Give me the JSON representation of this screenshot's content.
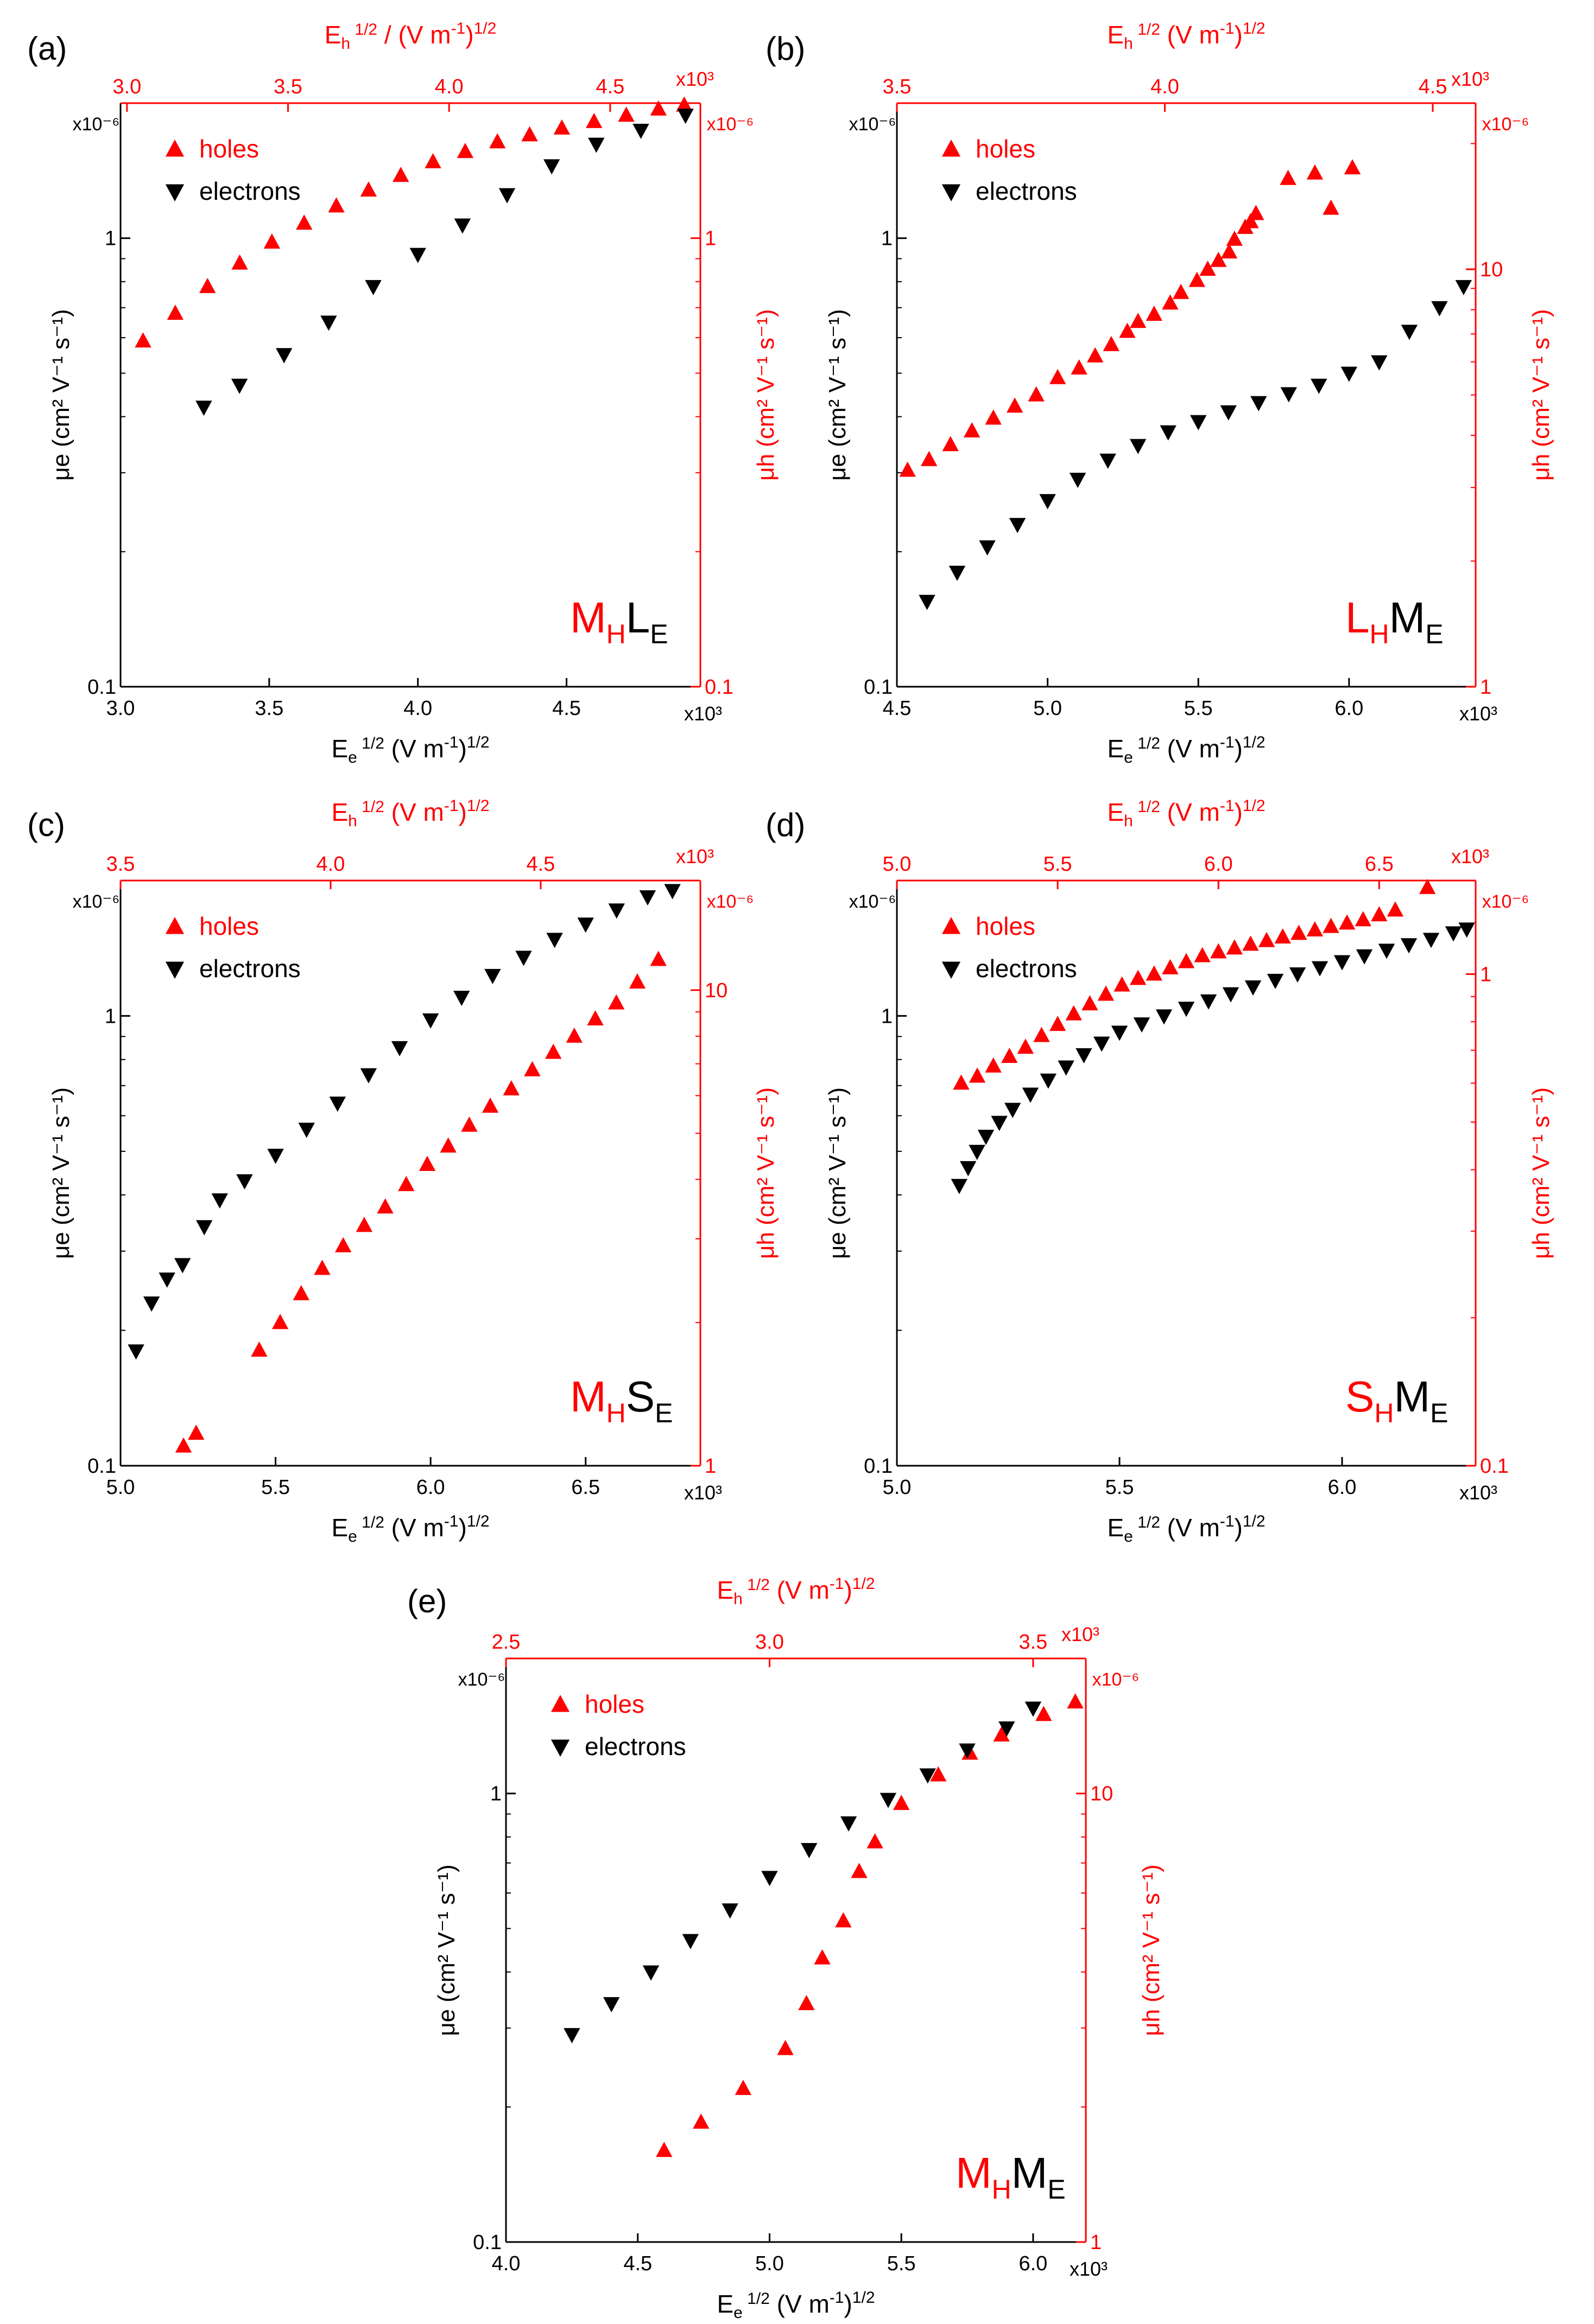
{
  "figure": {
    "colors": {
      "holes": "#ff0000",
      "electrons": "#000000",
      "axis_right_top": "#ff0000",
      "axis_left_bottom": "#000000"
    }
  },
  "chart_data": [
    {
      "id": "a",
      "type": "scatter",
      "panel_label": "(a)",
      "label_parts": [
        [
          "M",
          "red",
          false
        ],
        [
          "H",
          "red",
          true
        ],
        [
          "L",
          "black",
          false
        ],
        [
          "E",
          "black",
          true
        ]
      ],
      "legend": {
        "holes": "holes",
        "electrons": "electrons",
        "placement": "top-left"
      },
      "xlabel": {
        "var": "E",
        "sub": "e",
        "sup": "1/2",
        "rest": "(V m",
        "rsup": "-1",
        "end": ")",
        "esup": "1/2"
      },
      "xlabel_top": {
        "var": "E",
        "sub": "h",
        "sup": "1/2",
        "rest": "/ (V m",
        "rsup": "-1",
        "end": ")",
        "esup": "1/2"
      },
      "ylabel_left": "μe (cm² V⁻¹ s⁻¹)",
      "ylabel_right": "μh (cm² V⁻¹ s⁻¹)",
      "x_bottom": {
        "range": [
          3.0,
          4.95
        ],
        "ticks": [
          "3.0",
          "3.5",
          "4.0",
          "4.5"
        ],
        "tick_values": [
          3.0,
          3.5,
          4.0,
          4.5
        ],
        "multiplier": "x10³"
      },
      "x_top": {
        "range": [
          2.98,
          4.78
        ],
        "ticks": [
          "3.0",
          "3.5",
          "4.0",
          "4.5"
        ],
        "tick_values": [
          3.0,
          3.5,
          4.0,
          4.5
        ],
        "multiplier": "x10³"
      },
      "y_left": {
        "scale": "log",
        "range": [
          0.1,
          2.0
        ],
        "ticks": [
          "0.1",
          "1"
        ],
        "tick_values": [
          0.1,
          1
        ],
        "multiplier": "x10⁻⁶"
      },
      "y_right": {
        "scale": "log",
        "range": [
          0.1,
          2.0
        ],
        "ticks": [
          "0.1",
          "1"
        ],
        "tick_values": [
          0.1,
          1
        ],
        "multiplier": "x10⁻⁶"
      },
      "series": [
        {
          "name": "holes",
          "marker": "triangle-up",
          "axis": "top-right",
          "x": [
            3.05,
            3.15,
            3.25,
            3.35,
            3.45,
            3.55,
            3.65,
            3.75,
            3.85,
            3.95,
            4.05,
            4.15,
            4.25,
            4.35,
            4.45,
            4.55,
            4.65,
            4.73
          ],
          "y": [
            0.59,
            0.68,
            0.78,
            0.88,
            0.98,
            1.08,
            1.18,
            1.28,
            1.38,
            1.48,
            1.56,
            1.64,
            1.7,
            1.76,
            1.82,
            1.88,
            1.94,
            1.98
          ]
        },
        {
          "name": "electrons",
          "marker": "triangle-down",
          "axis": "bottom-left",
          "x": [
            3.28,
            3.4,
            3.55,
            3.7,
            3.85,
            4.0,
            4.15,
            4.3,
            4.45,
            4.6,
            4.75,
            4.9
          ],
          "y": [
            0.42,
            0.47,
            0.55,
            0.65,
            0.78,
            0.92,
            1.07,
            1.25,
            1.45,
            1.62,
            1.74,
            1.88
          ]
        }
      ]
    },
    {
      "id": "b",
      "type": "scatter",
      "panel_label": "(b)",
      "label_parts": [
        [
          "L",
          "red",
          false
        ],
        [
          "H",
          "red",
          true
        ],
        [
          "M",
          "black",
          false
        ],
        [
          "E",
          "black",
          true
        ]
      ],
      "legend": {
        "holes": "holes",
        "electrons": "electrons",
        "placement": "top-left"
      },
      "xlabel": {
        "var": "E",
        "sub": "e",
        "sup": "1/2",
        "rest": "(V m",
        "rsup": "-1",
        "end": ")",
        "esup": "1/2"
      },
      "xlabel_top": {
        "var": "E",
        "sub": "h",
        "sup": "1/2",
        "rest": "(V m",
        "rsup": "-1",
        "end": ")",
        "esup": "1/2"
      },
      "ylabel_left": "μe (cm² V⁻¹ s⁻¹)",
      "ylabel_right": "μh (cm² V⁻¹ s⁻¹)",
      "x_bottom": {
        "range": [
          4.5,
          6.42
        ],
        "ticks": [
          "4.5",
          "5.0",
          "5.5",
          "6.0"
        ],
        "tick_values": [
          4.5,
          5.0,
          5.5,
          6.0
        ],
        "multiplier": "x10³"
      },
      "x_top": {
        "range": [
          3.5,
          4.58
        ],
        "ticks": [
          "3.5",
          "4.0",
          "4.5"
        ],
        "tick_values": [
          3.5,
          4.0,
          4.5
        ],
        "multiplier": "x10³"
      },
      "y_left": {
        "scale": "log",
        "range": [
          0.1,
          2.0
        ],
        "ticks": [
          "0.1",
          "1"
        ],
        "tick_values": [
          0.1,
          1
        ],
        "multiplier": "x10⁻⁶"
      },
      "y_right": {
        "scale": "log",
        "range": [
          1,
          25
        ],
        "ticks": [
          "1",
          "10"
        ],
        "tick_values": [
          1,
          10
        ],
        "multiplier": "x10⁻⁶"
      },
      "series": [
        {
          "name": "holes",
          "marker": "triangle-up",
          "axis": "top-right",
          "x": [
            3.52,
            3.56,
            3.6,
            3.64,
            3.68,
            3.72,
            3.76,
            3.8,
            3.84,
            3.87,
            3.9,
            3.93,
            3.95,
            3.98,
            4.01,
            4.03,
            4.06,
            4.08,
            4.1,
            4.12,
            4.13,
            4.15,
            4.16,
            4.17,
            4.23,
            4.28,
            4.31,
            4.35
          ],
          "y": [
            3.3,
            3.5,
            3.8,
            4.1,
            4.4,
            4.7,
            5.0,
            5.5,
            5.8,
            6.2,
            6.6,
            7.1,
            7.5,
            7.8,
            8.3,
            8.8,
            9.4,
            10.0,
            10.5,
            11.0,
            11.8,
            12.6,
            13.0,
            13.6,
            16.5,
            17.0,
            14.0,
            17.5
          ]
        },
        {
          "name": "electrons",
          "marker": "triangle-down",
          "axis": "bottom-left",
          "x": [
            4.6,
            4.7,
            4.8,
            4.9,
            5.0,
            5.1,
            5.2,
            5.3,
            5.4,
            5.5,
            5.6,
            5.7,
            5.8,
            5.9,
            6.0,
            6.1,
            6.2,
            6.3,
            6.38
          ],
          "y": [
            0.155,
            0.18,
            0.205,
            0.23,
            0.26,
            0.29,
            0.32,
            0.345,
            0.37,
            0.39,
            0.41,
            0.43,
            0.45,
            0.47,
            0.5,
            0.53,
            0.62,
            0.7,
            0.78
          ]
        }
      ]
    },
    {
      "id": "c",
      "type": "scatter",
      "panel_label": "(c)",
      "label_parts": [
        [
          "M",
          "red",
          false
        ],
        [
          "H",
          "red",
          true
        ],
        [
          "S",
          "black",
          false
        ],
        [
          "E",
          "black",
          true
        ]
      ],
      "legend": {
        "holes": "holes",
        "electrons": "electrons",
        "placement": "top-left"
      },
      "xlabel": {
        "var": "E",
        "sub": "e",
        "sup": "1/2",
        "rest": "(V m",
        "rsup": "-1",
        "end": ")",
        "esup": "1/2"
      },
      "xlabel_top": {
        "var": "E",
        "sub": "h",
        "sup": "1/2",
        "rest": "(V m",
        "rsup": "-1",
        "end": ")",
        "esup": "1/2"
      },
      "ylabel_left": "μe (cm² V⁻¹ s⁻¹)",
      "ylabel_right": "μh (cm² V⁻¹ s⁻¹)",
      "x_bottom": {
        "range": [
          5.0,
          6.87
        ],
        "ticks": [
          "5.0",
          "5.5",
          "6.0",
          "6.5"
        ],
        "tick_values": [
          5.0,
          5.5,
          6.0,
          6.5
        ],
        "multiplier": "x10³"
      },
      "x_top": {
        "range": [
          3.5,
          4.88
        ],
        "ticks": [
          "3.5",
          "4.0",
          "4.5"
        ],
        "tick_values": [
          3.5,
          4.0,
          4.5
        ],
        "multiplier": "x10³"
      },
      "y_left": {
        "scale": "log",
        "range": [
          0.1,
          2.0
        ],
        "ticks": [
          "0.1",
          "1"
        ],
        "tick_values": [
          0.1,
          1
        ],
        "multiplier": "x10⁻⁶"
      },
      "y_right": {
        "scale": "log",
        "range": [
          1,
          17
        ],
        "ticks": [
          "1",
          "10"
        ],
        "tick_values": [
          1,
          10
        ],
        "multiplier": "x10⁻⁶"
      },
      "series": [
        {
          "name": "holes",
          "marker": "triangle-up",
          "axis": "top-right",
          "x": [
            3.65,
            3.68,
            3.83,
            3.88,
            3.93,
            3.98,
            4.03,
            4.08,
            4.13,
            4.18,
            4.23,
            4.28,
            4.33,
            4.38,
            4.43,
            4.48,
            4.53,
            4.58,
            4.63,
            4.68,
            4.73,
            4.78
          ],
          "y": [
            1.1,
            1.17,
            1.75,
            2.0,
            2.3,
            2.6,
            2.9,
            3.2,
            3.5,
            3.9,
            4.3,
            4.7,
            5.2,
            5.7,
            6.2,
            6.8,
            7.4,
            8.0,
            8.7,
            9.4,
            10.4,
            11.6
          ]
        },
        {
          "name": "electrons",
          "marker": "triangle-down",
          "axis": "bottom-left",
          "x": [
            5.05,
            5.1,
            5.15,
            5.2,
            5.27,
            5.32,
            5.4,
            5.5,
            5.6,
            5.7,
            5.8,
            5.9,
            6.0,
            6.1,
            6.2,
            6.3,
            6.4,
            6.5,
            6.6,
            6.7,
            6.78
          ],
          "y": [
            0.18,
            0.23,
            0.26,
            0.28,
            0.34,
            0.39,
            0.43,
            0.49,
            0.56,
            0.64,
            0.74,
            0.85,
            0.98,
            1.1,
            1.23,
            1.35,
            1.48,
            1.6,
            1.72,
            1.84,
            1.9
          ]
        }
      ]
    },
    {
      "id": "d",
      "type": "scatter",
      "panel_label": "(d)",
      "label_parts": [
        [
          "S",
          "red",
          false
        ],
        [
          "H",
          "red",
          true
        ],
        [
          "M",
          "black",
          false
        ],
        [
          "E",
          "black",
          true
        ]
      ],
      "legend": {
        "holes": "holes",
        "electrons": "electrons",
        "placement": "top-left"
      },
      "xlabel": {
        "var": "E",
        "sub": "e",
        "sup": "1/2",
        "rest": "(V m",
        "rsup": "-1",
        "end": ")",
        "esup": "1/2"
      },
      "xlabel_top": {
        "var": "E",
        "sub": "h",
        "sup": "1/2",
        "rest": "(V m",
        "rsup": "-1",
        "end": ")",
        "esup": "1/2"
      },
      "ylabel_left": "μe (cm² V⁻¹ s⁻¹)",
      "ylabel_right": "μh (cm² V⁻¹ s⁻¹)",
      "x_bottom": {
        "range": [
          5.0,
          6.3
        ],
        "ticks": [
          "5.0",
          "5.5",
          "6.0"
        ],
        "tick_values": [
          5.0,
          5.5,
          6.0
        ],
        "multiplier": "x10³"
      },
      "x_top": {
        "range": [
          5.0,
          6.8
        ],
        "ticks": [
          "5.0",
          "5.5",
          "6.0",
          "6.5"
        ],
        "tick_values": [
          5.0,
          5.5,
          6.0,
          6.5
        ],
        "multiplier": "x10³"
      },
      "y_left": {
        "scale": "log",
        "range": [
          0.1,
          2.0
        ],
        "ticks": [
          "0.1",
          "1"
        ],
        "tick_values": [
          0.1,
          1
        ],
        "multiplier": "x10⁻⁶"
      },
      "y_right": {
        "scale": "log",
        "range": [
          0.1,
          1.55
        ],
        "ticks": [
          "0.1",
          "1"
        ],
        "tick_values": [
          0.1,
          1
        ],
        "multiplier": "x10⁻⁶"
      },
      "series": [
        {
          "name": "holes",
          "marker": "triangle-up",
          "axis": "top-right",
          "x": [
            5.2,
            5.25,
            5.3,
            5.35,
            5.4,
            5.45,
            5.5,
            5.55,
            5.6,
            5.65,
            5.7,
            5.75,
            5.8,
            5.85,
            5.9,
            5.95,
            6.0,
            6.05,
            6.1,
            6.15,
            6.2,
            6.25,
            6.3,
            6.35,
            6.4,
            6.45,
            6.5,
            6.55,
            6.65
          ],
          "y": [
            0.6,
            0.62,
            0.65,
            0.68,
            0.71,
            0.75,
            0.79,
            0.83,
            0.87,
            0.91,
            0.95,
            0.98,
            1.0,
            1.03,
            1.06,
            1.09,
            1.11,
            1.13,
            1.15,
            1.17,
            1.19,
            1.21,
            1.23,
            1.25,
            1.27,
            1.29,
            1.32,
            1.35,
            1.5
          ]
        },
        {
          "name": "electrons",
          "marker": "triangle-down",
          "axis": "bottom-left",
          "x": [
            5.14,
            5.16,
            5.18,
            5.2,
            5.23,
            5.26,
            5.3,
            5.34,
            5.38,
            5.42,
            5.46,
            5.5,
            5.55,
            5.6,
            5.65,
            5.7,
            5.75,
            5.8,
            5.85,
            5.9,
            5.95,
            6.0,
            6.05,
            6.1,
            6.15,
            6.2,
            6.25,
            6.28
          ],
          "y": [
            0.42,
            0.46,
            0.5,
            0.54,
            0.58,
            0.62,
            0.67,
            0.72,
            0.77,
            0.82,
            0.87,
            0.92,
            0.96,
            1.0,
            1.04,
            1.08,
            1.12,
            1.16,
            1.2,
            1.24,
            1.28,
            1.32,
            1.36,
            1.4,
            1.44,
            1.48,
            1.53,
            1.56
          ]
        }
      ]
    },
    {
      "id": "e",
      "type": "scatter",
      "panel_label": "(e)",
      "label_parts": [
        [
          "M",
          "red",
          false
        ],
        [
          "H",
          "red",
          true
        ],
        [
          "M",
          "black",
          false
        ],
        [
          "E",
          "black",
          true
        ]
      ],
      "legend": {
        "holes": "holes",
        "electrons": "electrons",
        "placement": "top-left"
      },
      "xlabel": {
        "var": "E",
        "sub": "e",
        "sup": "1/2",
        "rest": "(V m",
        "rsup": "-1",
        "end": ")",
        "esup": "1/2"
      },
      "xlabel_top": {
        "var": "E",
        "sub": "h",
        "sup": "1/2",
        "rest": "(V m",
        "rsup": "-1",
        "end": ")",
        "esup": "1/2"
      },
      "ylabel_left": "μe (cm² V⁻¹ s⁻¹)",
      "ylabel_right": "μh (cm² V⁻¹ s⁻¹)",
      "x_bottom": {
        "range": [
          4.0,
          6.2
        ],
        "ticks": [
          "4.0",
          "4.5",
          "5.0",
          "5.5",
          "6.0"
        ],
        "tick_values": [
          4.0,
          4.5,
          5.0,
          5.5,
          6.0
        ],
        "multiplier": "x10³"
      },
      "x_top": {
        "range": [
          2.5,
          3.6
        ],
        "ticks": [
          "2.5",
          "3.0",
          "3.5"
        ],
        "tick_values": [
          2.5,
          3.0,
          3.5
        ],
        "multiplier": "x10³"
      },
      "y_left": {
        "scale": "log",
        "range": [
          0.1,
          2.0
        ],
        "ticks": [
          "0.1",
          "1"
        ],
        "tick_values": [
          0.1,
          1
        ],
        "multiplier": "x10⁻⁶"
      },
      "y_right": {
        "scale": "log",
        "range": [
          1,
          20
        ],
        "ticks": [
          "1",
          "10"
        ],
        "tick_values": [
          1,
          10
        ],
        "multiplier": "x10⁻⁶"
      },
      "series": [
        {
          "name": "holes",
          "marker": "triangle-up",
          "axis": "top-right",
          "x": [
            2.8,
            2.87,
            2.95,
            3.03,
            3.07,
            3.1,
            3.14,
            3.17,
            3.2,
            3.25,
            3.32,
            3.38,
            3.44,
            3.52,
            3.58
          ],
          "y": [
            1.6,
            1.85,
            2.2,
            2.7,
            3.4,
            4.3,
            5.2,
            6.7,
            7.8,
            9.5,
            11.0,
            12.3,
            13.5,
            15.0,
            16.0
          ]
        },
        {
          "name": "electrons",
          "marker": "triangle-down",
          "axis": "bottom-left",
          "x": [
            4.25,
            4.4,
            4.55,
            4.7,
            4.85,
            5.0,
            5.15,
            5.3,
            5.45,
            5.6,
            5.75,
            5.9,
            6.0
          ],
          "y": [
            0.29,
            0.34,
            0.4,
            0.47,
            0.55,
            0.65,
            0.75,
            0.86,
            0.97,
            1.1,
            1.25,
            1.4,
            1.55
          ]
        }
      ]
    }
  ]
}
